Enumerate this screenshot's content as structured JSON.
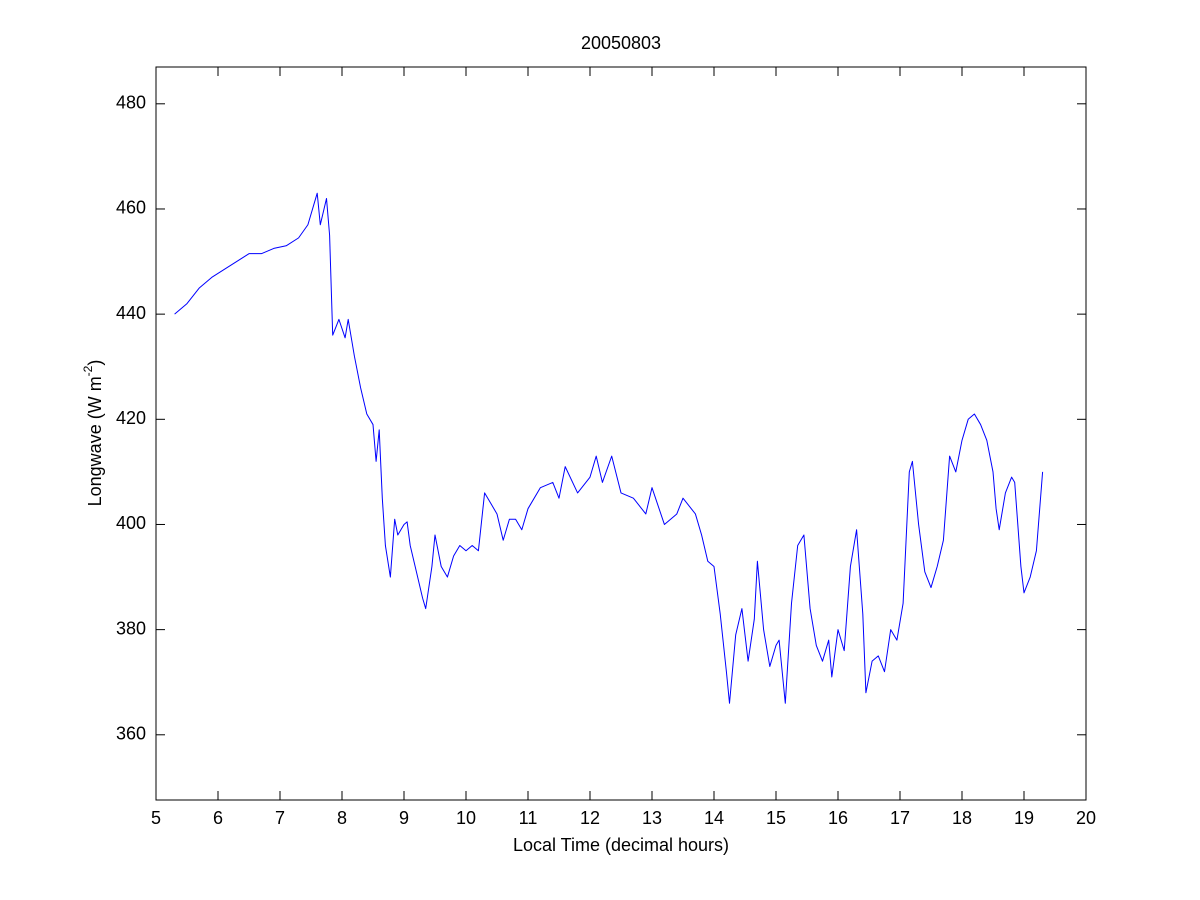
{
  "chart_data": {
    "type": "line",
    "title": "20050803",
    "xlabel": "Local Time (decimal hours)",
    "ylabel": {
      "text": "Longwave (W m",
      "superscript": "-2",
      "suffix": ")"
    },
    "xlim": [
      5,
      20
    ],
    "ylim": [
      347.6,
      487.0
    ],
    "xticks": [
      5,
      6,
      7,
      8,
      9,
      10,
      11,
      12,
      13,
      14,
      15,
      16,
      17,
      18,
      19,
      20
    ],
    "yticks": [
      360,
      380,
      400,
      420,
      440,
      460,
      480
    ],
    "grid": false,
    "series": [
      {
        "color": "#0000ff",
        "x": [
          5.3,
          5.5,
          5.7,
          5.9,
          6.1,
          6.3,
          6.5,
          6.7,
          6.9,
          7.1,
          7.3,
          7.45,
          7.6,
          7.65,
          7.75,
          7.8,
          7.85,
          7.95,
          8.05,
          8.1,
          8.2,
          8.3,
          8.4,
          8.5,
          8.55,
          8.6,
          8.65,
          8.7,
          8.78,
          8.85,
          8.9,
          9.0,
          9.05,
          9.1,
          9.2,
          9.3,
          9.35,
          9.45,
          9.5,
          9.6,
          9.7,
          9.8,
          9.9,
          10.0,
          10.1,
          10.2,
          10.3,
          10.4,
          10.5,
          10.6,
          10.7,
          10.8,
          10.9,
          11.0,
          11.2,
          11.4,
          11.5,
          11.6,
          11.8,
          12.0,
          12.1,
          12.2,
          12.35,
          12.5,
          12.7,
          12.9,
          13.0,
          13.2,
          13.4,
          13.5,
          13.7,
          13.8,
          13.9,
          14.0,
          14.1,
          14.2,
          14.25,
          14.35,
          14.45,
          14.55,
          14.65,
          14.7,
          14.8,
          14.9,
          15.0,
          15.05,
          15.15,
          15.25,
          15.35,
          15.45,
          15.55,
          15.65,
          15.75,
          15.85,
          15.9,
          16.0,
          16.1,
          16.2,
          16.3,
          16.4,
          16.45,
          16.55,
          16.65,
          16.75,
          16.85,
          16.95,
          17.05,
          17.15,
          17.2,
          17.3,
          17.4,
          17.5,
          17.6,
          17.7,
          17.8,
          17.9,
          18.0,
          18.1,
          18.2,
          18.3,
          18.4,
          18.5,
          18.55,
          18.6,
          18.7,
          18.8,
          18.85,
          18.9,
          18.95,
          19.0,
          19.1,
          19.2,
          19.3
        ],
        "values": [
          440,
          442,
          445,
          447,
          448.5,
          450,
          451.5,
          451.5,
          452.5,
          453,
          454.5,
          457,
          463,
          457,
          462,
          455,
          436,
          439,
          435.5,
          439,
          432,
          426,
          421,
          419,
          412,
          418,
          405,
          396,
          390,
          401,
          398,
          400,
          400.5,
          396,
          391,
          386,
          384,
          392,
          398,
          392,
          390,
          394,
          396,
          395,
          396,
          395,
          406,
          404,
          402,
          397,
          401,
          401,
          399,
          403,
          407,
          408,
          405,
          411,
          406,
          409,
          413,
          408,
          413,
          406,
          405,
          402,
          407,
          400,
          402,
          405,
          402,
          398,
          393,
          392,
          383,
          372,
          366,
          379,
          384,
          374,
          382,
          393,
          380,
          373,
          377,
          378,
          366,
          385,
          396,
          398,
          384,
          377,
          374,
          378,
          371,
          380,
          376,
          392,
          399,
          383,
          368,
          374,
          375,
          372,
          380,
          378,
          385,
          410,
          412,
          400,
          391,
          388,
          392,
          397,
          413,
          410,
          416,
          420,
          421,
          419,
          416,
          410,
          403,
          399,
          406,
          409,
          408,
          400,
          392,
          387,
          390,
          395,
          410
        ]
      }
    ]
  }
}
